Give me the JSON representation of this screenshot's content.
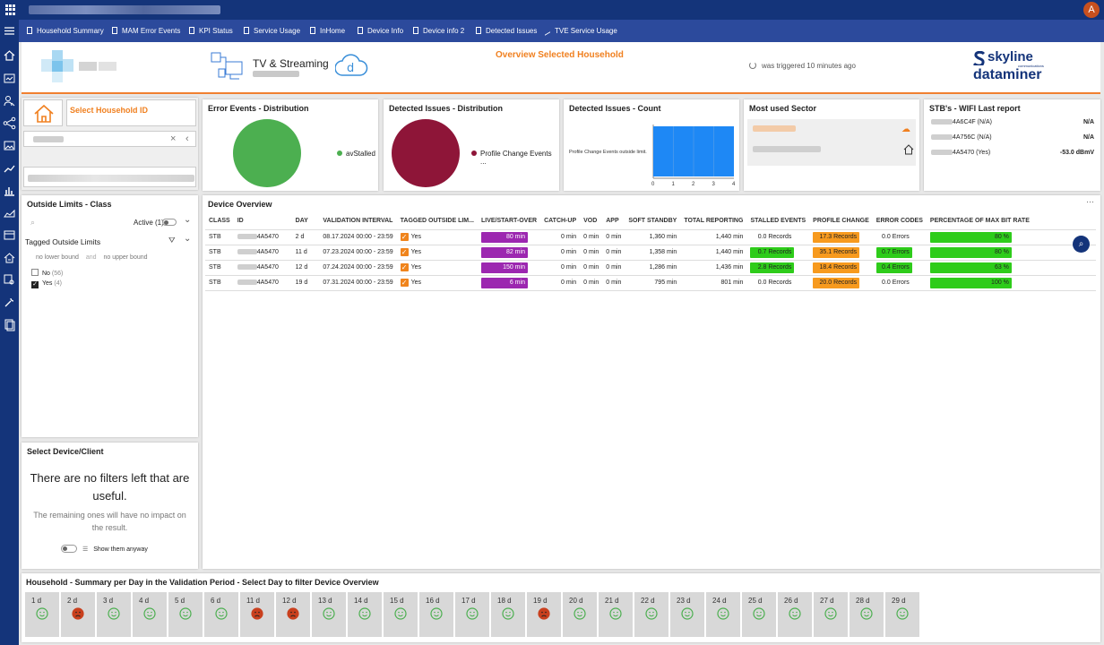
{
  "app": {
    "user_initial": "A"
  },
  "nav": [
    {
      "label": "Household Summary"
    },
    {
      "label": "MAM Error Events"
    },
    {
      "label": "KPI Status"
    },
    {
      "label": "Service Usage"
    },
    {
      "label": "InHome"
    },
    {
      "label": "Device Info"
    },
    {
      "label": "Device info 2"
    },
    {
      "label": "Detected Issues"
    },
    {
      "label": "TVE Service Usage"
    }
  ],
  "header": {
    "tv_title": "TV & Streaming",
    "overview_title": "Overview Selected Household",
    "triggered": "was triggered 10 minutes ago",
    "brand_top": "skyline",
    "brand_sub": "communications",
    "brand_bottom": "dataminer"
  },
  "household": {
    "title": "Select Household ID"
  },
  "error_events": {
    "title": "Error Events - Distribution",
    "legend": "avStalled",
    "color": "#4caf50"
  },
  "detected_dist": {
    "title": "Detected Issues - Distribution",
    "legend": "Profile Change Events ...",
    "color": "#8e1538"
  },
  "detected_count": {
    "title": "Detected Issues - Count"
  },
  "sector": {
    "title": "Most used Sector"
  },
  "wifi": {
    "title": "STB's - WIFI Last report",
    "rows": [
      {
        "id": "4A6C4F (N/A)",
        "value": "N/A"
      },
      {
        "id": "4A756C (N/A)",
        "value": "N/A"
      },
      {
        "id": "4A5470 (Yes)",
        "value": "-53.0 dBmV"
      }
    ]
  },
  "outside": {
    "title": "Outside Limits - Class",
    "active": "Active (1)",
    "tagged_title": "Tagged Outside Limits",
    "lower": "no lower bound",
    "and": "and",
    "upper": "no upper bound",
    "opt_no": "No",
    "opt_no_count": "(56)",
    "opt_yes": "Yes",
    "opt_yes_count": "(4)"
  },
  "select_device": {
    "title": "Select Device/Client",
    "msg": "There are no filters left that are useful.",
    "sub": "The remaining ones will have no impact on the result.",
    "toggle": "Show them anyway"
  },
  "device_overview": {
    "title": "Device Overview",
    "headers": [
      "CLASS",
      "ID",
      "DAY",
      "VALIDATION INTERVAL",
      "TAGGED OUTSIDE LIM...",
      "LIVE/START-OVER",
      "CATCH-UP",
      "VOD",
      "APP",
      "SOFT STANDBY",
      "TOTAL REPORTING",
      "STALLED EVENTS",
      "PROFILE CHANGE",
      "ERROR CODES",
      "PERCENTAGE OF MAX BIT RATE"
    ],
    "rows": [
      {
        "class": "STB",
        "id": "4A5470",
        "day": "2 d",
        "interval": "08.17.2024 00:00 - 23:59",
        "tagged": "Yes",
        "live": "80 min",
        "catchup": "0 min",
        "vod": "0 min",
        "app": "0 min",
        "standby": "1,360 min",
        "total": "1,440 min",
        "stalled": "0.0 Records",
        "profile": "17.3 Records",
        "errors": "0.0 Errors",
        "bitrate": "80 %"
      },
      {
        "class": "STB",
        "id": "4A5470",
        "day": "11 d",
        "interval": "07.23.2024 00:00 - 23:59",
        "tagged": "Yes",
        "live": "82 min",
        "catchup": "0 min",
        "vod": "0 min",
        "app": "0 min",
        "standby": "1,358 min",
        "total": "1,440 min",
        "stalled": "0.7 Records",
        "profile": "35.1 Records",
        "errors": "0.7 Errors",
        "bitrate": "80 %"
      },
      {
        "class": "STB",
        "id": "4A5470",
        "day": "12 d",
        "interval": "07.24.2024 00:00 - 23:59",
        "tagged": "Yes",
        "live": "150 min",
        "catchup": "0 min",
        "vod": "0 min",
        "app": "0 min",
        "standby": "1,286 min",
        "total": "1,436 min",
        "stalled": "2.8 Records",
        "profile": "18.4 Records",
        "errors": "0.4 Errors",
        "bitrate": "63 %"
      },
      {
        "class": "STB",
        "id": "4A5470",
        "day": "19 d",
        "interval": "07.31.2024 00:00 - 23:59",
        "tagged": "Yes",
        "live": "6 min",
        "catchup": "0 min",
        "vod": "0 min",
        "app": "0 min",
        "standby": "795 min",
        "total": "801 min",
        "stalled": "0.0 Records",
        "profile": "20.0 Records",
        "errors": "0.0 Errors",
        "bitrate": "100 %"
      }
    ]
  },
  "summary": {
    "title": "Household - Summary per Day in the Validation Period - Select Day to filter Device Overview",
    "days": [
      {
        "label": "1 d",
        "status": "ok"
      },
      {
        "label": "2 d",
        "status": "bad"
      },
      {
        "label": "3 d",
        "status": "ok"
      },
      {
        "label": "4 d",
        "status": "ok"
      },
      {
        "label": "5 d",
        "status": "ok"
      },
      {
        "label": "6 d",
        "status": "ok"
      },
      {
        "label": "11 d",
        "status": "bad"
      },
      {
        "label": "12 d",
        "status": "bad"
      },
      {
        "label": "13 d",
        "status": "ok"
      },
      {
        "label": "14 d",
        "status": "ok"
      },
      {
        "label": "15 d",
        "status": "ok"
      },
      {
        "label": "16 d",
        "status": "ok"
      },
      {
        "label": "17 d",
        "status": "ok"
      },
      {
        "label": "18 d",
        "status": "ok"
      },
      {
        "label": "19 d",
        "status": "bad"
      },
      {
        "label": "20 d",
        "status": "ok"
      },
      {
        "label": "21 d",
        "status": "ok"
      },
      {
        "label": "22 d",
        "status": "ok"
      },
      {
        "label": "23 d",
        "status": "ok"
      },
      {
        "label": "24 d",
        "status": "ok"
      },
      {
        "label": "25 d",
        "status": "ok"
      },
      {
        "label": "26 d",
        "status": "ok"
      },
      {
        "label": "27 d",
        "status": "ok"
      },
      {
        "label": "28 d",
        "status": "ok"
      },
      {
        "label": "29 d",
        "status": "ok"
      }
    ]
  },
  "chart_data": {
    "type": "bar",
    "orientation": "horizontal",
    "title": "Detected Issues - Count",
    "categories": [
      "Profile Change Events outside limit."
    ],
    "values": [
      4
    ],
    "xlim": [
      0,
      4
    ],
    "xticks": [
      "0",
      "1",
      "2",
      "3",
      "4"
    ],
    "color": "#1e88f5"
  },
  "colors": {
    "accent": "#f08020",
    "nav": "#2c4a9c",
    "topbar": "#14347a",
    "live": "#9c27b0",
    "green": "#2ecc1a",
    "orange": "#f79a1e"
  }
}
